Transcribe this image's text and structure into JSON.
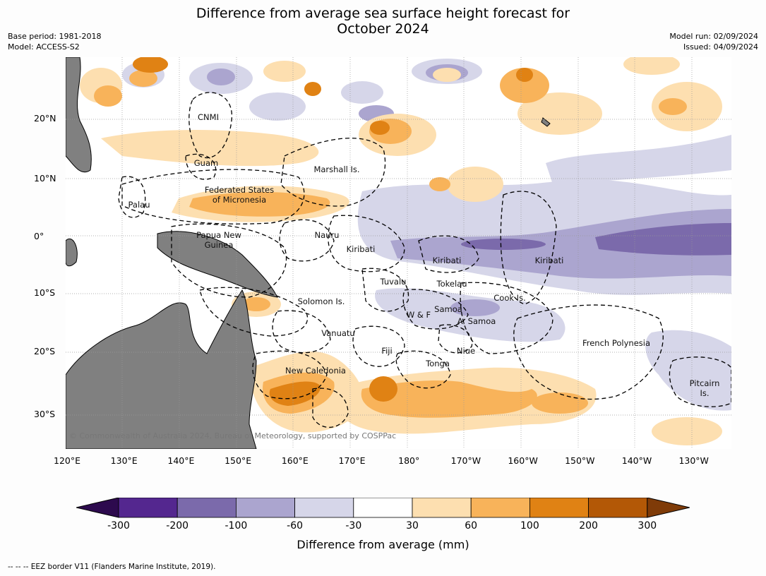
{
  "header": {
    "title_line1": "Difference from average sea surface height forecast for",
    "title_line2": "October 2024",
    "base_period": "Base period: 1981-2018",
    "model": "Model: ACCESS-S2",
    "model_run": "Model run: 02/09/2024",
    "issued": "Issued: 04/09/2024"
  },
  "map": {
    "latitude_labels": [
      "20°N",
      "10°N",
      "0°",
      "10°S",
      "20°S",
      "30°S"
    ],
    "longitude_labels": [
      "120°E",
      "130°E",
      "140°E",
      "150°E",
      "160°E",
      "170°E",
      "180°",
      "170°W",
      "160°W",
      "150°W",
      "140°W",
      "130°W"
    ],
    "region_labels": {
      "cnmi": "CNMI",
      "guam": "Guam",
      "marshall": "Marshall Is.",
      "palau": "Palau",
      "fsm_line1": "Federated States",
      "fsm_line2": "of Micronesia",
      "png_line1": "Papua New",
      "png_line2": "Guinea",
      "nauru": "Nauru",
      "kiribati_west": "Kiribati",
      "kiribati_central": "Kiribati",
      "kiribati_east": "Kiribati",
      "tuvalu": "Tuvalu",
      "tokelau": "Tokelau",
      "solomon": "Solomon Is.",
      "wf": "W & F",
      "samoa": "Samoa",
      "asamoa": "A. Samoa",
      "cook": "Cook Is.",
      "vanuatu": "Vanuatu",
      "fiji": "Fiji",
      "niue": "Niue",
      "french_polynesia": "French Polynesia",
      "tonga": "Tonga",
      "new_caledonia": "New Caledonia",
      "pitcairn_line1": "Pitcairn",
      "pitcairn_line2": "Is."
    },
    "copyright": "© Commonwealth of Australia 2024, Bureau of Meteorology, supported by COSPPac"
  },
  "colorbar": {
    "ticks": [
      "-300",
      "-200",
      "-100",
      "-60",
      "-30",
      "30",
      "60",
      "100",
      "200",
      "300"
    ],
    "label": "Difference from average (mm)",
    "colors": {
      "below_min": "#2d0a4e",
      "n300": "#54278f",
      "n200": "#7b6aab",
      "n100": "#aba5cf",
      "n60": "#d6d6e9",
      "neutral": "#ffffff",
      "p30": "#fddfb0",
      "p60": "#f8b35a",
      "p100": "#e08214",
      "p200": "#b35806",
      "above_max": "#7f3b08"
    }
  },
  "footer": {
    "eez_note": "--  --  -- EEZ border V11 (Flanders Marine Institute, 2019)."
  }
}
